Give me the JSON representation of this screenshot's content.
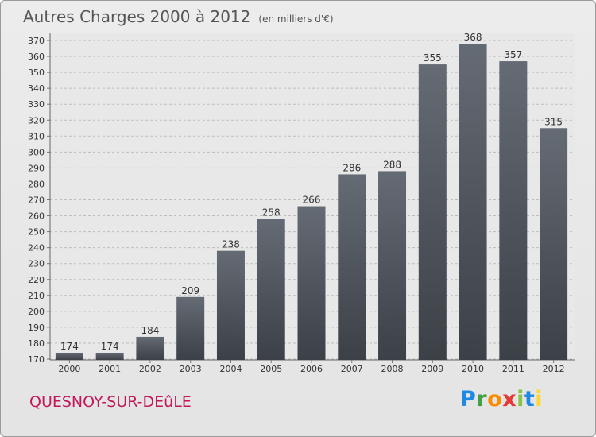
{
  "chart_data": {
    "type": "bar",
    "title": "Autres Charges 2000 à 2012",
    "subtitle": "(en milliers d'€)",
    "categories": [
      "2000",
      "2001",
      "2002",
      "2003",
      "2004",
      "2005",
      "2006",
      "2007",
      "2008",
      "2009",
      "2010",
      "2011",
      "2012"
    ],
    "values": [
      174,
      174,
      184,
      209,
      238,
      258,
      266,
      286,
      288,
      355,
      368,
      357,
      315
    ],
    "ylim": [
      170,
      370
    ],
    "yticks": [
      170,
      180,
      190,
      200,
      210,
      220,
      230,
      240,
      250,
      260,
      270,
      280,
      290,
      300,
      310,
      320,
      330,
      340,
      350,
      360,
      370
    ],
    "grid": true,
    "bar_color": "#3c4047"
  },
  "footer": {
    "commune": "QUESNOY-SUR-DEûLE",
    "logo": {
      "p": "P",
      "r": "r",
      "o": "o",
      "x": "x",
      "i1": "i",
      "t": "t",
      "i2": "i"
    }
  }
}
